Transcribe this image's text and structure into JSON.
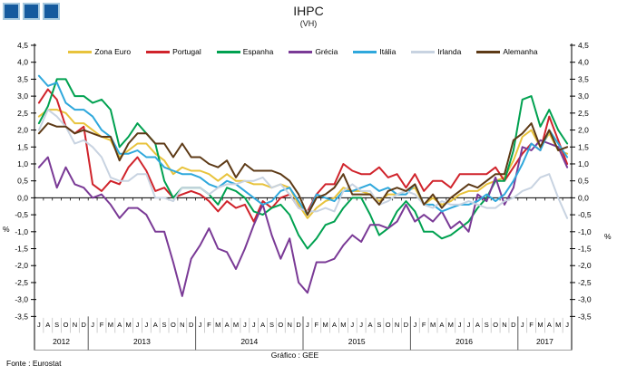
{
  "title": "IHPC",
  "subtitle": "(VH)",
  "footer": {
    "source": "Fonte : Eurostat",
    "credit": "Gráfico : GEE"
  },
  "logo": {
    "name": "three-blue-squares",
    "fill": "#155A9E",
    "border": "#A5C8DF",
    "count": 3
  },
  "chart_data": {
    "type": "line",
    "title": "IHPC",
    "subtitle": "(VH)",
    "ylabel_left": "%",
    "ylabel_right": "%",
    "ylim": [
      -3.5,
      4.5
    ],
    "ytick_step": 0.5,
    "decimal_separator": ",",
    "grid": false,
    "legend_position": "top",
    "x_start": "Jul 2012",
    "x_end": "Jun 2017",
    "x_groups": [
      {
        "year": "2012",
        "months": [
          "J",
          "A",
          "S",
          "O",
          "N",
          "D"
        ]
      },
      {
        "year": "2013",
        "months": [
          "J",
          "F",
          "M",
          "A",
          "M",
          "J",
          "J",
          "A",
          "S",
          "O",
          "N",
          "D"
        ]
      },
      {
        "year": "2014",
        "months": [
          "J",
          "F",
          "M",
          "A",
          "M",
          "J",
          "J",
          "A",
          "S",
          "O",
          "N",
          "D"
        ]
      },
      {
        "year": "2015",
        "months": [
          "J",
          "F",
          "M",
          "A",
          "M",
          "J",
          "J",
          "A",
          "S",
          "O",
          "N",
          "D"
        ]
      },
      {
        "year": "2016",
        "months": [
          "J",
          "F",
          "M",
          "A",
          "M",
          "J",
          "J",
          "A",
          "S",
          "O",
          "N",
          "D"
        ]
      },
      {
        "year": "2017",
        "months": [
          "J",
          "F",
          "M",
          "A",
          "M",
          "J"
        ]
      }
    ],
    "series": [
      {
        "name": "Zona Euro",
        "color": "#E8C33C",
        "values": [
          2.4,
          2.6,
          2.6,
          2.5,
          2.2,
          2.2,
          2.0,
          1.8,
          1.7,
          1.2,
          1.4,
          1.6,
          1.6,
          1.3,
          1.1,
          0.7,
          0.9,
          0.8,
          0.8,
          0.7,
          0.5,
          0.7,
          0.5,
          0.5,
          0.4,
          0.4,
          0.3,
          0.4,
          0.3,
          -0.2,
          -0.6,
          -0.3,
          -0.1,
          0.0,
          0.3,
          0.2,
          0.2,
          0.1,
          -0.1,
          0.1,
          0.1,
          0.2,
          0.3,
          -0.2,
          0.0,
          -0.2,
          -0.1,
          0.1,
          0.2,
          0.2,
          0.4,
          0.5,
          0.6,
          1.1,
          1.8,
          2.0,
          1.5,
          1.9,
          1.4,
          1.3
        ]
      },
      {
        "name": "Portugal",
        "color": "#D0232B",
        "values": [
          2.8,
          3.2,
          2.9,
          2.1,
          1.9,
          2.1,
          0.4,
          0.2,
          0.5,
          0.4,
          0.9,
          1.2,
          0.8,
          0.2,
          0.3,
          0.0,
          0.1,
          0.2,
          0.1,
          -0.1,
          -0.4,
          -0.1,
          -0.3,
          -0.2,
          -0.7,
          -0.1,
          -0.3,
          0.0,
          0.1,
          -0.3,
          -0.4,
          0.1,
          0.4,
          0.4,
          1.0,
          0.8,
          0.7,
          0.7,
          0.9,
          0.6,
          0.7,
          0.3,
          0.7,
          0.2,
          0.5,
          0.5,
          0.3,
          0.7,
          0.7,
          0.7,
          0.7,
          0.9,
          0.5,
          0.9,
          1.3,
          1.6,
          1.4,
          2.4,
          1.7,
          1.0
        ]
      },
      {
        "name": "Espanha",
        "color": "#00A150",
        "values": [
          2.2,
          2.7,
          3.5,
          3.5,
          3.0,
          3.0,
          2.8,
          2.9,
          2.6,
          1.5,
          1.8,
          2.2,
          1.9,
          1.6,
          0.5,
          0.0,
          0.3,
          0.3,
          0.3,
          0.1,
          -0.2,
          0.3,
          0.2,
          0.0,
          -0.4,
          -0.5,
          -0.3,
          -0.2,
          -0.5,
          -1.1,
          -1.5,
          -1.2,
          -0.8,
          -0.7,
          -0.3,
          0.0,
          0.0,
          -0.5,
          -1.1,
          -0.9,
          -0.4,
          -0.1,
          -0.4,
          -1.0,
          -1.0,
          -1.2,
          -1.1,
          -0.9,
          -0.7,
          -0.3,
          0.0,
          0.5,
          0.5,
          1.4,
          2.9,
          3.0,
          2.1,
          2.6,
          2.0,
          1.6
        ]
      },
      {
        "name": "Grécia",
        "color": "#7A3A96",
        "values": [
          0.9,
          1.2,
          0.3,
          0.9,
          0.4,
          0.3,
          0.0,
          0.1,
          -0.2,
          -0.6,
          -0.3,
          -0.3,
          -0.5,
          -1.0,
          -1.0,
          -1.9,
          -2.9,
          -1.8,
          -1.4,
          -0.9,
          -1.5,
          -1.6,
          -2.1,
          -1.5,
          -0.8,
          -0.2,
          -1.1,
          -1.8,
          -1.2,
          -2.5,
          -2.8,
          -1.9,
          -1.9,
          -1.8,
          -1.4,
          -1.1,
          -1.3,
          -0.8,
          -0.8,
          -0.9,
          -0.7,
          -0.2,
          -0.7,
          -0.5,
          -0.7,
          -0.4,
          -0.9,
          -0.7,
          -1.0,
          0.1,
          -0.1,
          0.6,
          -0.2,
          0.3,
          1.5,
          1.4,
          1.7,
          1.6,
          1.5,
          0.9
        ]
      },
      {
        "name": "Itália",
        "color": "#2FA8DC",
        "values": [
          3.6,
          3.3,
          3.4,
          2.8,
          2.6,
          2.6,
          2.4,
          2.0,
          1.8,
          1.3,
          1.3,
          1.4,
          1.2,
          1.2,
          0.9,
          0.8,
          0.7,
          0.7,
          0.6,
          0.4,
          0.3,
          0.5,
          0.4,
          0.2,
          0.0,
          -0.2,
          -0.1,
          0.2,
          0.3,
          -0.1,
          -0.5,
          0.1,
          0.0,
          -0.1,
          0.2,
          0.2,
          0.3,
          0.4,
          0.2,
          0.3,
          0.1,
          0.1,
          0.4,
          -0.2,
          -0.2,
          -0.4,
          -0.3,
          -0.2,
          -0.2,
          -0.1,
          0.1,
          -0.1,
          0.1,
          0.5,
          1.0,
          1.6,
          1.4,
          2.0,
          1.6,
          1.2
        ]
      },
      {
        "name": "Irlanda",
        "color": "#C8D3E1",
        "values": [
          2.0,
          2.6,
          2.4,
          2.1,
          1.6,
          1.7,
          1.5,
          1.2,
          0.6,
          0.5,
          0.5,
          0.7,
          0.7,
          0.0,
          0.0,
          -0.1,
          0.3,
          0.3,
          0.3,
          0.1,
          0.3,
          0.4,
          0.4,
          0.5,
          0.5,
          0.6,
          0.3,
          0.4,
          0.1,
          -0.3,
          -0.4,
          -0.4,
          -0.3,
          -0.4,
          0.2,
          0.4,
          0.2,
          0.2,
          -0.2,
          -0.1,
          0.1,
          0.2,
          0.1,
          -0.2,
          -0.3,
          -0.1,
          -0.2,
          -0.2,
          -0.1,
          -0.2,
          -0.3,
          -0.3,
          -0.1,
          0.0,
          0.2,
          0.3,
          0.6,
          0.7,
          0.0,
          -0.6
        ]
      },
      {
        "name": "Alemanha",
        "color": "#5D3A16",
        "values": [
          1.9,
          2.2,
          2.1,
          2.1,
          1.9,
          2.0,
          1.9,
          1.8,
          1.8,
          1.1,
          1.6,
          1.9,
          1.9,
          1.6,
          1.6,
          1.2,
          1.6,
          1.2,
          1.2,
          1.0,
          0.9,
          1.1,
          0.6,
          1.0,
          0.8,
          0.8,
          0.8,
          0.7,
          0.5,
          0.1,
          -0.5,
          0.0,
          0.1,
          0.3,
          0.7,
          0.1,
          0.1,
          0.1,
          -0.2,
          0.2,
          0.3,
          0.2,
          0.4,
          -0.2,
          0.1,
          -0.3,
          0.0,
          0.2,
          0.4,
          0.3,
          0.5,
          0.7,
          0.7,
          1.7,
          1.9,
          2.2,
          1.5,
          2.0,
          1.4,
          1.5
        ]
      }
    ]
  }
}
